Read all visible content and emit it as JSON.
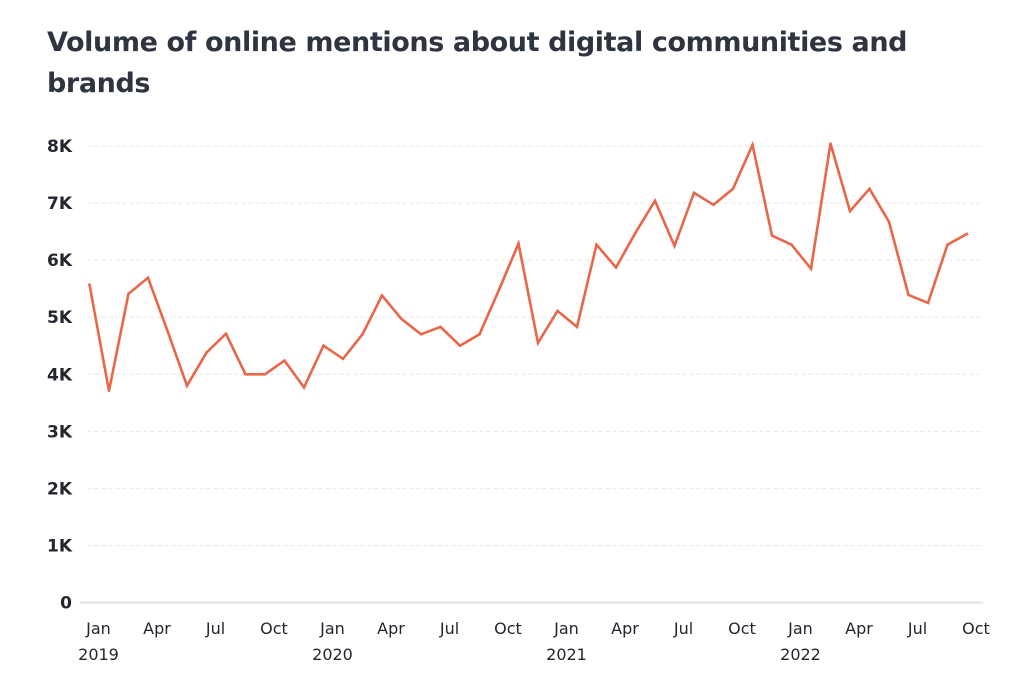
{
  "chart_data": {
    "type": "line",
    "title": "Volume of online mentions about digital communities and brands",
    "xlabel": "",
    "ylabel": "",
    "ylim": [
      0,
      8000
    ],
    "yticks": [
      0,
      1000,
      2000,
      3000,
      4000,
      5000,
      6000,
      7000,
      8000
    ],
    "ytick_labels": [
      "0",
      "1K",
      "2K",
      "3K",
      "4K",
      "5K",
      "6K",
      "7K",
      "8K"
    ],
    "grid": true,
    "legend": "none",
    "x_tick_labels": [
      {
        "month_index": 0,
        "label": "Jan",
        "year": "2019"
      },
      {
        "month_index": 3,
        "label": "Apr",
        "year": ""
      },
      {
        "month_index": 6,
        "label": "Jul",
        "year": ""
      },
      {
        "month_index": 9,
        "label": "Oct",
        "year": ""
      },
      {
        "month_index": 12,
        "label": "Jan",
        "year": "2020"
      },
      {
        "month_index": 15,
        "label": "Apr",
        "year": ""
      },
      {
        "month_index": 18,
        "label": "Jul",
        "year": ""
      },
      {
        "month_index": 21,
        "label": "Oct",
        "year": ""
      },
      {
        "month_index": 24,
        "label": "Jan",
        "year": "2021"
      },
      {
        "month_index": 27,
        "label": "Apr",
        "year": ""
      },
      {
        "month_index": 30,
        "label": "Jul",
        "year": ""
      },
      {
        "month_index": 33,
        "label": "Oct",
        "year": ""
      },
      {
        "month_index": 36,
        "label": "Jan",
        "year": "2022"
      },
      {
        "month_index": 39,
        "label": "Apr",
        "year": ""
      },
      {
        "month_index": 42,
        "label": "Jul",
        "year": ""
      },
      {
        "month_index": 45,
        "label": "Oct",
        "year": ""
      }
    ],
    "x": [
      "2019-01",
      "2019-02",
      "2019-03",
      "2019-04",
      "2019-05",
      "2019-06",
      "2019-07",
      "2019-08",
      "2019-09",
      "2019-10",
      "2019-11",
      "2019-12",
      "2020-01",
      "2020-02",
      "2020-03",
      "2020-04",
      "2020-05",
      "2020-06",
      "2020-07",
      "2020-08",
      "2020-09",
      "2020-10",
      "2020-11",
      "2020-12",
      "2021-01",
      "2021-02",
      "2021-03",
      "2021-04",
      "2021-05",
      "2021-06",
      "2021-07",
      "2021-08",
      "2021-09",
      "2021-10",
      "2021-11",
      "2021-12",
      "2022-01",
      "2022-02",
      "2022-03",
      "2022-04",
      "2022-05",
      "2022-06",
      "2022-07",
      "2022-08",
      "2022-09",
      "2022-10"
    ],
    "series": [
      {
        "name": "Online mentions",
        "color": "#e8674a",
        "values": [
          5570,
          3710,
          5410,
          5690,
          4760,
          3800,
          4380,
          4710,
          4000,
          4000,
          4240,
          3770,
          4500,
          4270,
          4700,
          5380,
          4970,
          4700,
          4830,
          4500,
          4700,
          5480,
          6290,
          4550,
          5110,
          4830,
          6270,
          5870,
          6480,
          7040,
          6250,
          7180,
          6970,
          7250,
          8020,
          6430,
          6270,
          5850,
          8040,
          6860,
          7250,
          6670,
          5390,
          5250,
          6270,
          6460
        ]
      }
    ]
  }
}
